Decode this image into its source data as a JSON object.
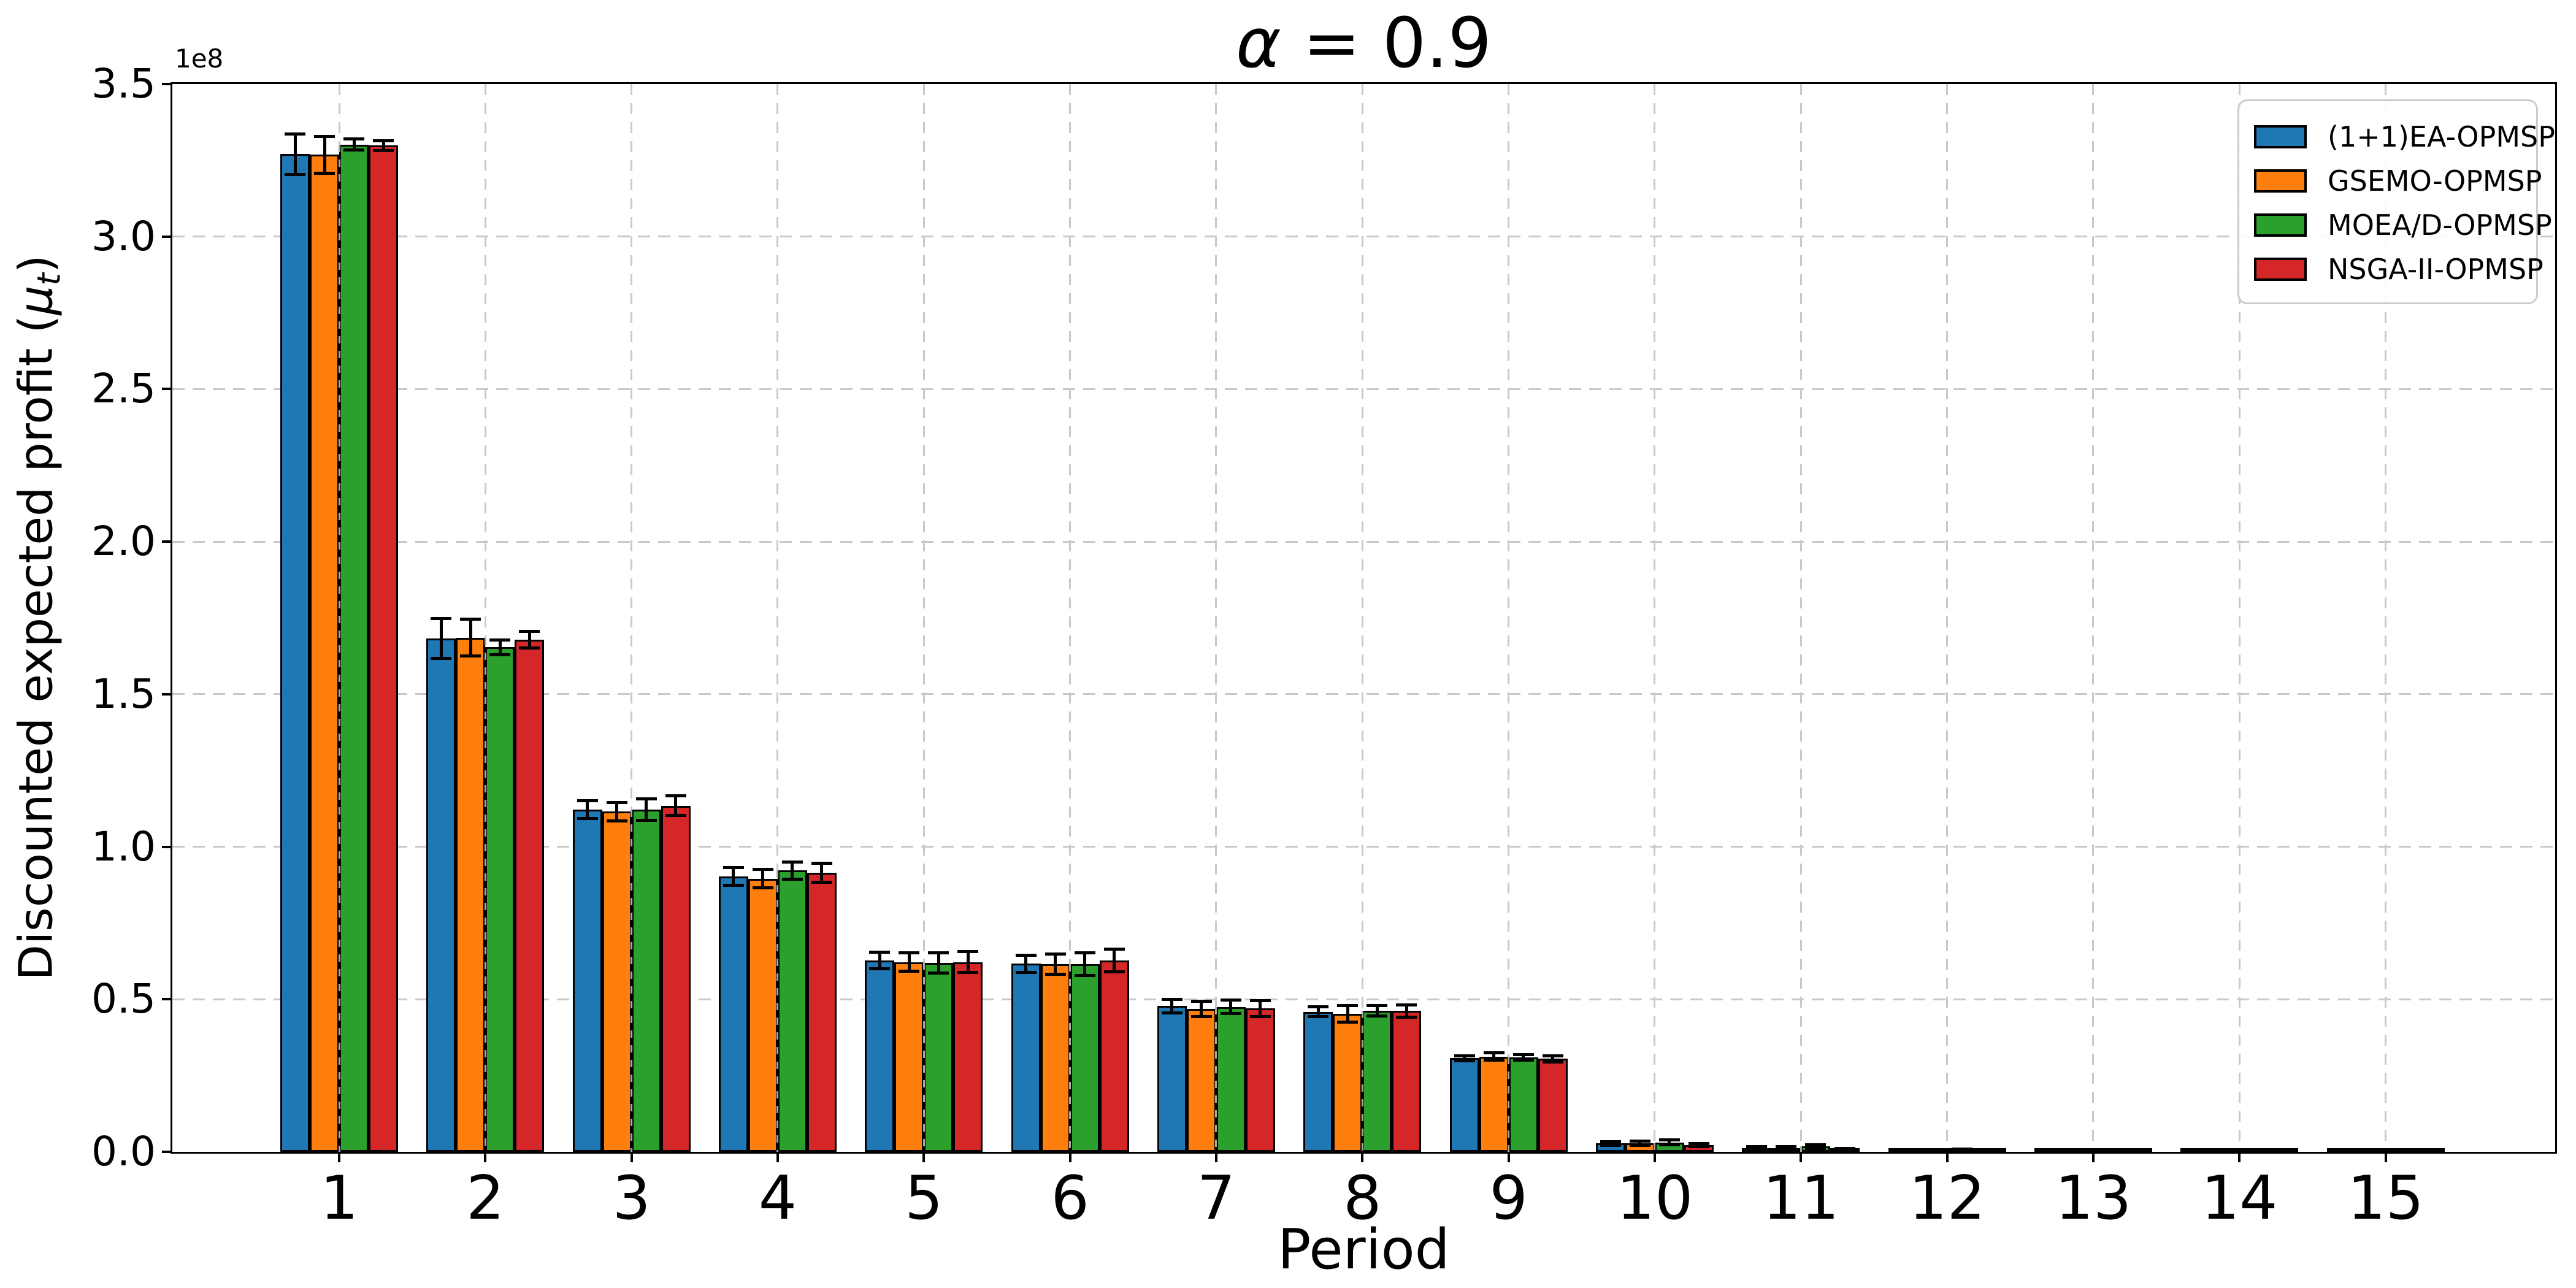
{
  "figure": {
    "background": "#ffffff",
    "title_parts": {
      "symbol": "α",
      "rest": " = 0.9"
    },
    "ylabel_parts": {
      "main": "Discounted expected profit (",
      "mu": "μ",
      "sub": "t",
      "close": ")"
    }
  },
  "chart_data": {
    "type": "bar",
    "title": "α = 0.9",
    "xlabel": "Period",
    "ylabel": "Discounted expected profit (μ_t)",
    "y_offset_label": "1e8",
    "value_unit": "1e8",
    "categories": [
      "1",
      "2",
      "3",
      "4",
      "5",
      "6",
      "7",
      "8",
      "9",
      "10",
      "11",
      "12",
      "13",
      "14",
      "15"
    ],
    "ylim": [
      0.0,
      3.5
    ],
    "yticks": [
      0.0,
      0.5,
      1.0,
      1.5,
      2.0,
      2.5,
      3.0,
      3.5
    ],
    "yticklabels": [
      "0.0",
      "0.5",
      "1.0",
      "1.5",
      "2.0",
      "2.5",
      "3.0",
      "3.5"
    ],
    "grid": true,
    "grid_style": "dashed",
    "legend_position": "upper right",
    "error_bars": "symmetric",
    "series": [
      {
        "name": "(1+1)EA-OPMSP",
        "color": "#1f77b4",
        "values": [
          3.27,
          1.683,
          1.122,
          0.902,
          0.627,
          0.617,
          0.478,
          0.459,
          0.307,
          0.028,
          0.013,
          0.006,
          0.004,
          0.003,
          0.003
        ],
        "errors": [
          0.067,
          0.065,
          0.029,
          0.029,
          0.027,
          0.028,
          0.022,
          0.016,
          0.008,
          0.006,
          0.004,
          0.002,
          0.002,
          0.001,
          0.001
        ]
      },
      {
        "name": "GSEMO-OPMSP",
        "color": "#ff7f0e",
        "values": [
          3.268,
          1.685,
          1.115,
          0.895,
          0.622,
          0.615,
          0.468,
          0.453,
          0.312,
          0.029,
          0.013,
          0.005,
          0.003,
          0.003,
          0.002
        ],
        "errors": [
          0.061,
          0.06,
          0.03,
          0.03,
          0.03,
          0.033,
          0.025,
          0.027,
          0.012,
          0.007,
          0.005,
          0.003,
          0.002,
          0.002,
          0.001
        ]
      },
      {
        "name": "MOEA/D-OPMSP",
        "color": "#2ca02c",
        "values": [
          3.302,
          1.654,
          1.122,
          0.922,
          0.62,
          0.615,
          0.475,
          0.462,
          0.309,
          0.031,
          0.018,
          0.006,
          0.004,
          0.003,
          0.002
        ],
        "errors": [
          0.018,
          0.024,
          0.035,
          0.028,
          0.033,
          0.037,
          0.022,
          0.017,
          0.009,
          0.008,
          0.006,
          0.003,
          0.002,
          0.001,
          0.001
        ]
      },
      {
        "name": "NSGA-II-OPMSP",
        "color": "#d62728",
        "values": [
          3.298,
          1.678,
          1.134,
          0.915,
          0.622,
          0.627,
          0.47,
          0.462,
          0.305,
          0.022,
          0.008,
          0.004,
          0.003,
          0.002,
          0.002
        ],
        "errors": [
          0.016,
          0.027,
          0.032,
          0.031,
          0.034,
          0.037,
          0.026,
          0.02,
          0.01,
          0.005,
          0.003,
          0.002,
          0.001,
          0.001,
          0.001
        ]
      }
    ]
  }
}
